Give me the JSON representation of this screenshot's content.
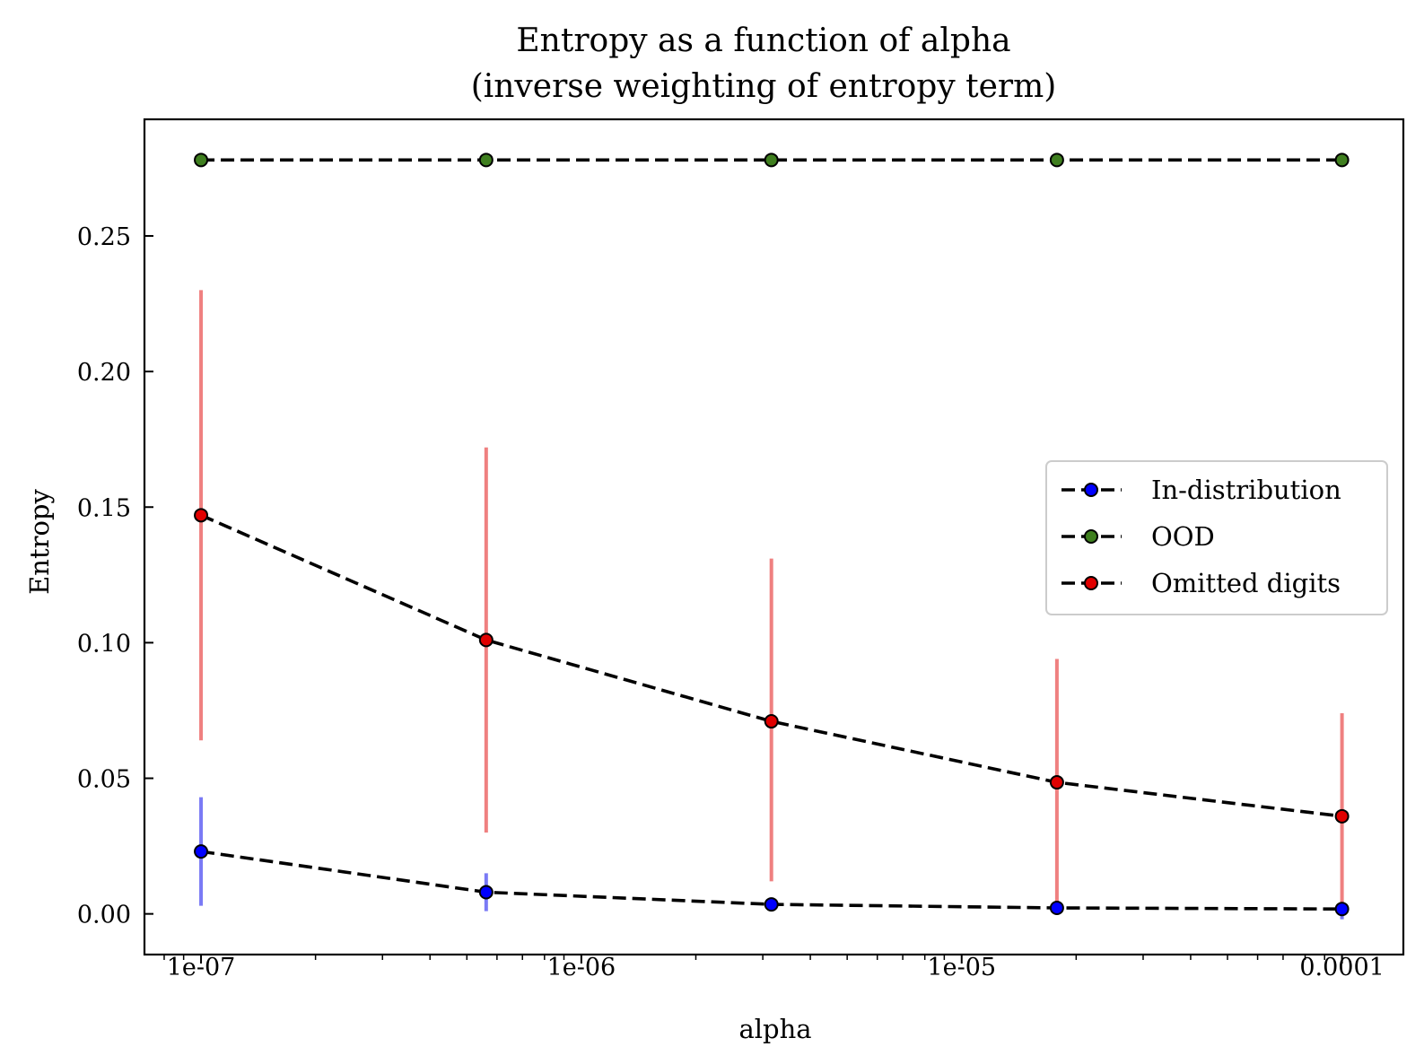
{
  "chart_data": {
    "type": "line",
    "title": [
      "Entropy as a function of alpha",
      "(inverse weighting of entropy term)"
    ],
    "xlabel": "alpha",
    "ylabel": "Entropy",
    "x_scale": "log",
    "x": [
      1e-07,
      5.62e-07,
      3.16e-06,
      1.78e-05,
      0.0001
    ],
    "xlim": [
      7.1e-08,
      0.000145
    ],
    "ylim": [
      -0.015,
      0.293
    ],
    "x_ticks": [
      1e-07,
      1e-06,
      1e-05,
      0.0001
    ],
    "x_tick_labels": [
      "1e-07",
      "1e-06",
      "1e-05",
      "0.0001"
    ],
    "y_ticks": [
      0.0,
      0.05,
      0.1,
      0.15,
      0.2,
      0.25
    ],
    "y_tick_labels": [
      "0.00",
      "0.05",
      "0.10",
      "0.15",
      "0.20",
      "0.25"
    ],
    "grid": false,
    "legend_position": "center-right",
    "series": [
      {
        "name": "In-distribution",
        "values": [
          0.023,
          0.008,
          0.0035,
          0.0022,
          0.0018
        ],
        "error_low": [
          0.003,
          0.001,
          0.001,
          0.0005,
          -0.002
        ],
        "error_high": [
          0.043,
          0.015,
          0.005,
          0.003,
          0.003
        ],
        "marker_color": "#0000ff",
        "error_color": "#7a7af5"
      },
      {
        "name": "OOD",
        "values": [
          0.278,
          0.278,
          0.278,
          0.278,
          0.278
        ],
        "error_low": [
          0.278,
          0.278,
          0.278,
          0.278,
          0.278
        ],
        "error_high": [
          0.278,
          0.278,
          0.278,
          0.278,
          0.278
        ],
        "marker_color": "#3f7f1f",
        "error_color": "#7fbf5f"
      },
      {
        "name": "Omitted digits",
        "values": [
          0.147,
          0.101,
          0.071,
          0.0485,
          0.036
        ],
        "error_low": [
          0.064,
          0.03,
          0.012,
          0.003,
          0.0
        ],
        "error_high": [
          0.23,
          0.172,
          0.131,
          0.094,
          0.074
        ],
        "marker_color": "#e00000",
        "error_color": "#ef8080"
      }
    ]
  }
}
